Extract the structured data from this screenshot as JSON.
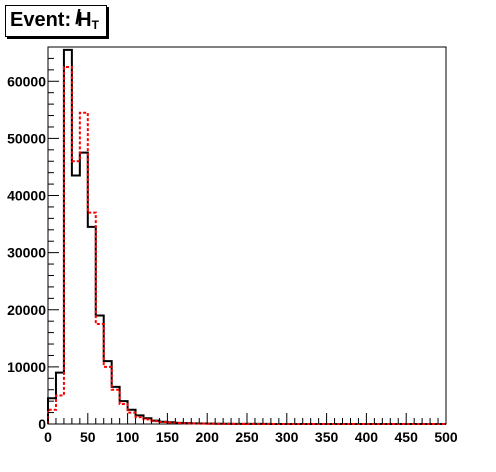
{
  "chart_data": {
    "type": "histogram",
    "title": {
      "prefix": "Event:",
      "symbol": "H",
      "subscript": "T"
    },
    "xlabel": "",
    "ylabel": "",
    "xlim": [
      0,
      500
    ],
    "ylim": [
      0,
      66000
    ],
    "bin_width": 10,
    "x_ticks": [
      0,
      50,
      100,
      150,
      200,
      250,
      300,
      350,
      400,
      450,
      500
    ],
    "y_ticks": [
      0,
      10000,
      20000,
      30000,
      40000,
      50000,
      60000
    ],
    "grid": false,
    "legend": "none",
    "series": [
      {
        "style": "solid",
        "color": "#000000",
        "values": [
          4500,
          9000,
          65500,
          43500,
          47500,
          34500,
          19000,
          11000,
          6500,
          4000,
          2500,
          1500,
          1000,
          600,
          400,
          300,
          200,
          150,
          100,
          80,
          60,
          50,
          40,
          30,
          25,
          20,
          15,
          12,
          10,
          8,
          6,
          5,
          4,
          3,
          3,
          2,
          2,
          2,
          1,
          1,
          1,
          1,
          1,
          1,
          0,
          0,
          0,
          0,
          0,
          0
        ]
      },
      {
        "style": "dashed",
        "color": "#ff0000",
        "values": [
          2500,
          5000,
          62500,
          46000,
          54500,
          37000,
          17500,
          10000,
          6000,
          3500,
          2000,
          1200,
          800,
          500,
          350,
          250,
          180,
          120,
          90,
          70,
          50,
          40,
          30,
          25,
          20,
          15,
          12,
          10,
          8,
          6,
          5,
          4,
          3,
          3,
          2,
          2,
          1,
          1,
          1,
          1,
          1,
          0,
          0,
          0,
          0,
          0,
          0,
          0,
          0,
          0
        ]
      }
    ]
  }
}
